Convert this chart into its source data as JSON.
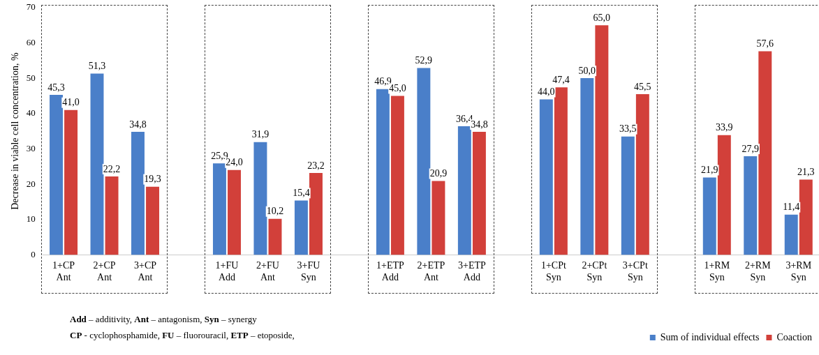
{
  "chart_data": {
    "type": "bar",
    "ylabel": "Decrease in viable cell concentration, %",
    "categories": [
      "1+CP\nAnt",
      "2+CP\nAnt",
      "3+CP\nAnt",
      null,
      "1+FU\nAdd",
      "2+FU\nAnt",
      "3+FU\nSyn",
      null,
      "1+ETP\nAdd",
      "2+ETP\nAnt",
      "3+ETP\nAdd",
      null,
      "1+CPt\nSyn",
      "2+CPt\nSyn",
      "3+CPt\nSyn",
      null,
      "1+RM\nSyn",
      "2+RM\nSyn",
      "3+RM\nSyn"
    ],
    "series": [
      {
        "name": "Sum of individual effects",
        "color": "#4a7fc9",
        "values": [
          45.3,
          51.3,
          34.8,
          null,
          25.9,
          31.9,
          15.4,
          null,
          46.9,
          52.9,
          36.4,
          null,
          44.0,
          50.0,
          33.5,
          null,
          21.9,
          27.9,
          11.4
        ],
        "value_labels": [
          "45,3",
          "51,3",
          "34,8",
          null,
          "25,9",
          "31,9",
          "15,4",
          null,
          "46,9",
          "52,9",
          "36,4",
          null,
          "44,0",
          "50,0",
          "33,5",
          null,
          "21,9",
          "27,9",
          "11,4"
        ]
      },
      {
        "name": "Coaction",
        "color": "#d2403a",
        "values": [
          41.0,
          22.2,
          19.3,
          null,
          24.0,
          10.2,
          23.2,
          null,
          45.0,
          20.9,
          34.8,
          null,
          47.4,
          65.0,
          45.5,
          null,
          33.9,
          57.6,
          21.3
        ],
        "value_labels": [
          "41,0",
          "22,2",
          "19,3",
          null,
          "24,0",
          "10,2",
          "23,2",
          null,
          "45,0",
          "20,9",
          "34,8",
          null,
          "47,4",
          "65,0",
          "45,5",
          null,
          "33,9",
          "57,6",
          "21,3"
        ]
      }
    ],
    "ylim": [
      0,
      70
    ],
    "yticks": [
      0,
      10,
      20,
      30,
      40,
      50,
      60,
      70
    ],
    "grid": false,
    "legend": "bottom right",
    "annotations": [
      "Add – additivity, Ant – antagonism, Syn – synergy",
      "CP - cyclophosphamide, FU – fluorouracil, ETP – etoposide,"
    ]
  }
}
